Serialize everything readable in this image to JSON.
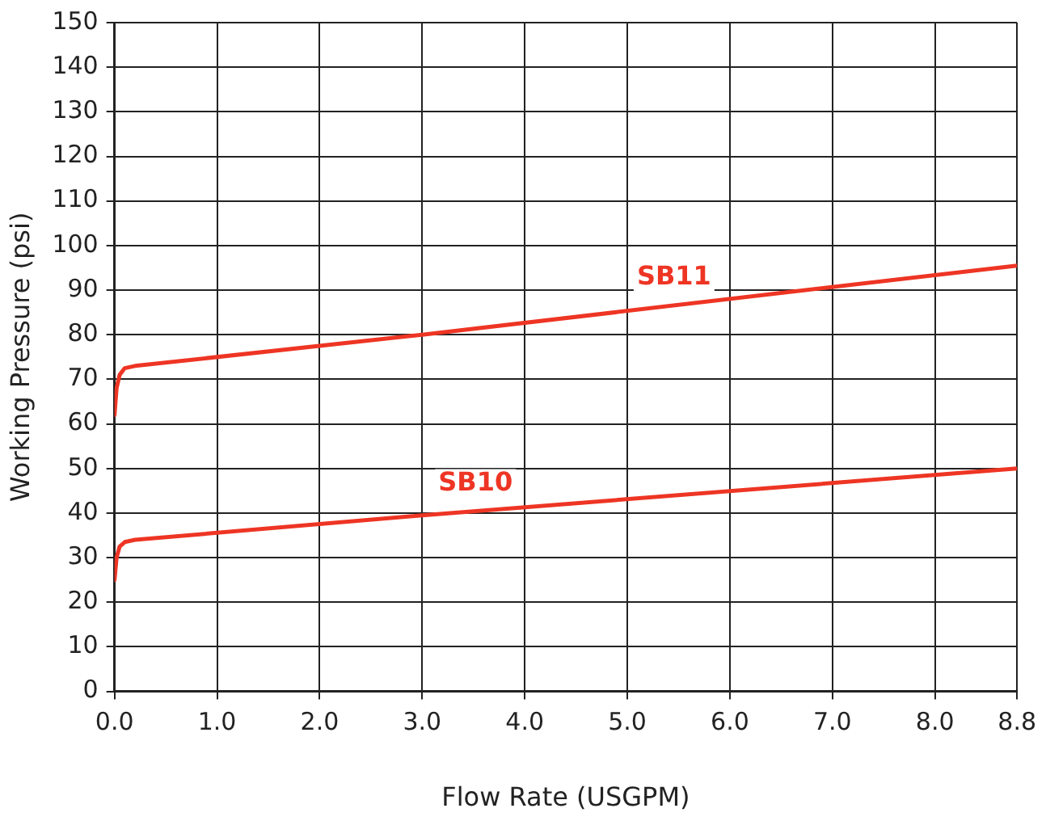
{
  "chart_data": {
    "type": "line",
    "xlabel": "Flow Rate (USGPM)",
    "ylabel": "Working Pressure (psi)",
    "xlim": [
      0,
      8.8
    ],
    "ylim": [
      0,
      150
    ],
    "xticks": [
      {
        "value": 0,
        "label": "0.0"
      },
      {
        "value": 1,
        "label": "1.0"
      },
      {
        "value": 2,
        "label": "2.0"
      },
      {
        "value": 3,
        "label": "3.0"
      },
      {
        "value": 4,
        "label": "4.0"
      },
      {
        "value": 5,
        "label": "5.0"
      },
      {
        "value": 6,
        "label": "6.0"
      },
      {
        "value": 7,
        "label": "7.0"
      },
      {
        "value": 8,
        "label": "8.0"
      },
      {
        "value": 8.8,
        "label": "8.8"
      }
    ],
    "yticks": [
      0,
      10,
      20,
      30,
      40,
      50,
      60,
      70,
      80,
      90,
      100,
      110,
      120,
      130,
      140,
      150
    ],
    "grid": true,
    "legend": false,
    "marker": "none",
    "line_style": "solid",
    "series": [
      {
        "name": "SB11",
        "color": "#ee3524",
        "x": [
          0,
          0.02,
          0.05,
          0.1,
          0.2,
          3,
          8.8
        ],
        "values": [
          62,
          68,
          71,
          72.5,
          73,
          80,
          95.5
        ]
      },
      {
        "name": "SB10",
        "color": "#ee3524",
        "x": [
          0,
          0.02,
          0.05,
          0.1,
          0.2,
          3,
          8.8
        ],
        "values": [
          25,
          30,
          32.5,
          33.5,
          34,
          39.5,
          50
        ]
      }
    ]
  }
}
